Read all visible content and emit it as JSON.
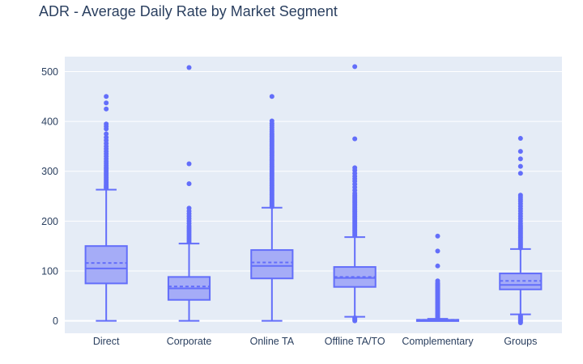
{
  "chart_data": {
    "type": "box",
    "title": "ADR - Average Daily Rate by Market Segment",
    "xlabel": "",
    "ylabel": "",
    "categories": [
      "Direct",
      "Corporate",
      "Online TA",
      "Offline TA/TO",
      "Complementary",
      "Groups"
    ],
    "ylim": [
      -25,
      530
    ],
    "yticks": [
      0,
      100,
      200,
      300,
      400,
      500
    ],
    "grid": true,
    "legend": "none",
    "colors": {
      "box_fill": "#a5acf7",
      "line": "#636efa",
      "plot_bg": "#e5ecf6",
      "grid": "#ffffff",
      "text": "#2a3f5f"
    },
    "boxes": [
      {
        "category": "Direct",
        "lower_fence": 0,
        "q1": 75,
        "median": 105,
        "mean": 116,
        "q3": 150,
        "upper_fence": 263,
        "outliers": [
          266,
          268,
          270,
          272,
          275,
          278,
          281,
          284,
          287,
          290,
          293,
          296,
          299,
          302,
          305,
          308,
          312,
          316,
          320,
          325,
          330,
          335,
          340,
          345,
          350,
          356,
          362,
          368,
          375,
          385,
          390,
          395,
          425,
          437,
          450
        ]
      },
      {
        "category": "Corporate",
        "lower_fence": 0,
        "q1": 42,
        "median": 65,
        "mean": 69,
        "q3": 88,
        "upper_fence": 155,
        "outliers": [
          158,
          162,
          166,
          170,
          174,
          178,
          182,
          186,
          190,
          195,
          200,
          205,
          210,
          215,
          220,
          226,
          275,
          315,
          508
        ]
      },
      {
        "category": "Online TA",
        "lower_fence": 0,
        "q1": 85,
        "median": 110,
        "mean": 117,
        "q3": 142,
        "upper_fence": 227,
        "outliers": [
          229,
          232,
          235,
          238,
          241,
          244,
          247,
          250,
          253,
          256,
          259,
          262,
          265,
          268,
          271,
          274,
          277,
          280,
          283,
          286,
          289,
          292,
          295,
          298,
          301,
          304,
          307,
          310,
          313,
          316,
          319,
          322,
          325,
          328,
          331,
          334,
          337,
          340,
          343,
          346,
          349,
          352,
          355,
          358,
          361,
          364,
          367,
          370,
          373,
          376,
          380,
          384,
          388,
          392,
          396,
          401,
          450
        ]
      },
      {
        "category": "Offline TA/TO",
        "lower_fence": 8,
        "q1": 68,
        "median": 86,
        "mean": 88,
        "q3": 108,
        "upper_fence": 168,
        "outliers": [
          0,
          2,
          4,
          6,
          171,
          174,
          177,
          180,
          183,
          186,
          189,
          192,
          195,
          198,
          201,
          204,
          207,
          210,
          213,
          216,
          219,
          222,
          225,
          228,
          231,
          234,
          237,
          240,
          243,
          246,
          249,
          252,
          256,
          262,
          268,
          274,
          280,
          285,
          290,
          296,
          302,
          307,
          365,
          510
        ]
      },
      {
        "category": "Complementary",
        "lower_fence": 0,
        "q1": 0,
        "median": 0,
        "mean": 2,
        "q3": 2,
        "upper_fence": 4,
        "outliers": [
          6,
          8,
          10,
          12,
          14,
          16,
          18,
          20,
          22,
          24,
          26,
          28,
          30,
          32,
          34,
          36,
          38,
          40,
          42,
          44,
          46,
          48,
          50,
          52,
          54,
          56,
          58,
          60,
          62,
          64,
          66,
          68,
          70,
          72,
          74,
          76,
          80,
          110,
          140,
          170
        ]
      },
      {
        "category": "Groups",
        "lower_fence": 13,
        "q1": 63,
        "median": 72,
        "mean": 80,
        "q3": 95,
        "upper_fence": 144,
        "outliers": [
          -4,
          -2,
          0,
          2,
          4,
          6,
          8,
          10,
          146,
          149,
          152,
          155,
          158,
          161,
          164,
          167,
          170,
          173,
          176,
          179,
          182,
          185,
          188,
          191,
          195,
          200,
          205,
          210,
          215,
          220,
          225,
          230,
          235,
          240,
          244,
          248,
          252,
          296,
          310,
          325,
          340,
          366
        ]
      }
    ]
  }
}
